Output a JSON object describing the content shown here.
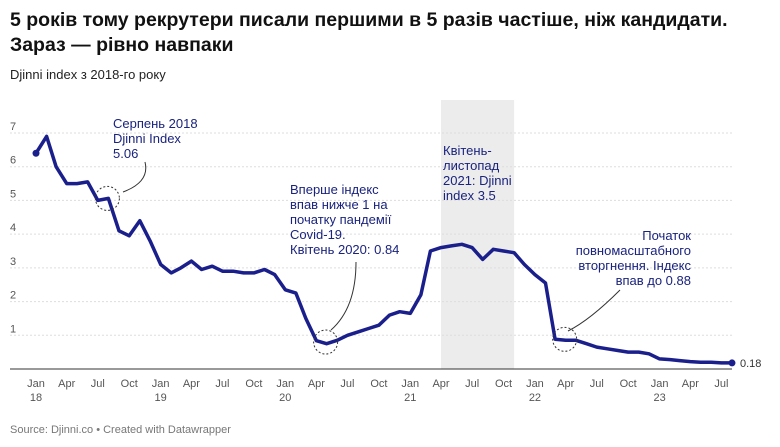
{
  "title": "5 років тому рекрутери писали першими в 5 разів частіше, ніж кандидати. Зараз — рівно навпаки",
  "subtitle": "Djinni index з 2018-го року",
  "footer": "Source: Djinni.co • Created with Datawrapper",
  "colors": {
    "line": "#1a1f8c",
    "shade": "#ececec",
    "grid": "#dddddd",
    "annotation": "#1a237e"
  },
  "chart_data": {
    "type": "line",
    "title": "5 років тому рекрутери писали першими в 5 разів частіше, ніж кандидати. Зараз — рівно навпаки",
    "subtitle": "Djinni index з 2018-го року",
    "xlabel": "",
    "ylabel": "",
    "ylim": [
      0,
      7
    ],
    "yticks": [
      1,
      2,
      3,
      4,
      5,
      6,
      7
    ],
    "grid": true,
    "xticks": [
      {
        "date": "2018-01",
        "label": "Jan",
        "year": "18"
      },
      {
        "date": "2018-04",
        "label": "Apr"
      },
      {
        "date": "2018-07",
        "label": "Jul"
      },
      {
        "date": "2018-10",
        "label": "Oct"
      },
      {
        "date": "2019-01",
        "label": "Jan",
        "year": "19"
      },
      {
        "date": "2019-04",
        "label": "Apr"
      },
      {
        "date": "2019-07",
        "label": "Jul"
      },
      {
        "date": "2019-10",
        "label": "Oct"
      },
      {
        "date": "2020-01",
        "label": "Jan",
        "year": "20"
      },
      {
        "date": "2020-04",
        "label": "Apr"
      },
      {
        "date": "2020-07",
        "label": "Jul"
      },
      {
        "date": "2020-10",
        "label": "Oct"
      },
      {
        "date": "2021-01",
        "label": "Jan",
        "year": "21"
      },
      {
        "date": "2021-04",
        "label": "Apr"
      },
      {
        "date": "2021-07",
        "label": "Jul"
      },
      {
        "date": "2021-10",
        "label": "Oct"
      },
      {
        "date": "2022-01",
        "label": "Jan",
        "year": "22"
      },
      {
        "date": "2022-04",
        "label": "Apr"
      },
      {
        "date": "2022-07",
        "label": "Jul"
      },
      {
        "date": "2022-10",
        "label": "Oct"
      },
      {
        "date": "2023-01",
        "label": "Jan",
        "year": "23"
      },
      {
        "date": "2023-04",
        "label": "Apr"
      },
      {
        "date": "2023-07",
        "label": "Jul"
      }
    ],
    "series": [
      {
        "points": [
          [
            "2018-01",
            6.4
          ],
          [
            "2018-02",
            6.9
          ],
          [
            "2018-03",
            6.0
          ],
          [
            "2018-04",
            5.5
          ],
          [
            "2018-05",
            5.5
          ],
          [
            "2018-06",
            5.55
          ],
          [
            "2018-07",
            5.0
          ],
          [
            "2018-08",
            5.06
          ],
          [
            "2018-09",
            4.1
          ],
          [
            "2018-10",
            3.95
          ],
          [
            "2018-11",
            4.4
          ],
          [
            "2018-12",
            3.8
          ],
          [
            "2019-01",
            3.1
          ],
          [
            "2019-02",
            2.85
          ],
          [
            "2019-03",
            3.0
          ],
          [
            "2019-04",
            3.2
          ],
          [
            "2019-05",
            2.95
          ],
          [
            "2019-06",
            3.05
          ],
          [
            "2019-07",
            2.9
          ],
          [
            "2019-08",
            2.9
          ],
          [
            "2019-09",
            2.85
          ],
          [
            "2019-10",
            2.85
          ],
          [
            "2019-11",
            2.95
          ],
          [
            "2019-12",
            2.8
          ],
          [
            "2020-01",
            2.35
          ],
          [
            "2020-02",
            2.25
          ],
          [
            "2020-03",
            1.5
          ],
          [
            "2020-04",
            0.84
          ],
          [
            "2020-05",
            0.75
          ],
          [
            "2020-06",
            0.85
          ],
          [
            "2020-07",
            1.0
          ],
          [
            "2020-08",
            1.1
          ],
          [
            "2020-09",
            1.2
          ],
          [
            "2020-10",
            1.3
          ],
          [
            "2020-11",
            1.6
          ],
          [
            "2020-12",
            1.7
          ],
          [
            "2021-01",
            1.65
          ],
          [
            "2021-02",
            2.2
          ],
          [
            "2021-03",
            3.5
          ],
          [
            "2021-04",
            3.6
          ],
          [
            "2021-05",
            3.65
          ],
          [
            "2021-06",
            3.7
          ],
          [
            "2021-07",
            3.6
          ],
          [
            "2021-08",
            3.25
          ],
          [
            "2021-09",
            3.55
          ],
          [
            "2021-10",
            3.5
          ],
          [
            "2021-11",
            3.45
          ],
          [
            "2021-12",
            3.1
          ],
          [
            "2022-01",
            2.8
          ],
          [
            "2022-02",
            2.55
          ],
          [
            "2022-03",
            0.88
          ],
          [
            "2022-04",
            0.85
          ],
          [
            "2022-05",
            0.85
          ],
          [
            "2022-06",
            0.75
          ],
          [
            "2022-07",
            0.65
          ],
          [
            "2022-08",
            0.6
          ],
          [
            "2022-09",
            0.55
          ],
          [
            "2022-10",
            0.5
          ],
          [
            "2022-11",
            0.5
          ],
          [
            "2022-12",
            0.45
          ],
          [
            "2023-01",
            0.3
          ],
          [
            "2023-02",
            0.28
          ],
          [
            "2023-03",
            0.25
          ],
          [
            "2023-04",
            0.22
          ],
          [
            "2023-05",
            0.2
          ],
          [
            "2023-06",
            0.2
          ],
          [
            "2023-07",
            0.18
          ],
          [
            "2023-08",
            0.18
          ]
        ]
      }
    ],
    "shaded_range": {
      "from": "2021-04",
      "to": "2021-11"
    },
    "end_label": "0.18",
    "annotations": [
      {
        "lines": [
          "Серпень 2018",
          "Djinni Index",
          "5.06"
        ],
        "point": [
          "2018-08",
          5.06
        ]
      },
      {
        "lines": [
          "Вперше індекс",
          "впав нижче 1 на",
          "початку пандемії",
          "Covid-19.",
          "Квітень 2020: 0.84"
        ],
        "point": [
          "2020-05",
          0.8
        ]
      },
      {
        "lines": [
          "Квітень-",
          "листопад",
          "2021: Djinni",
          "index 3.5"
        ]
      },
      {
        "lines": [
          "Початок",
          "повномасштабного",
          "вторгнення. Індекс",
          "впав до 0.88"
        ],
        "point": [
          "2022-04",
          0.88
        ]
      }
    ]
  }
}
